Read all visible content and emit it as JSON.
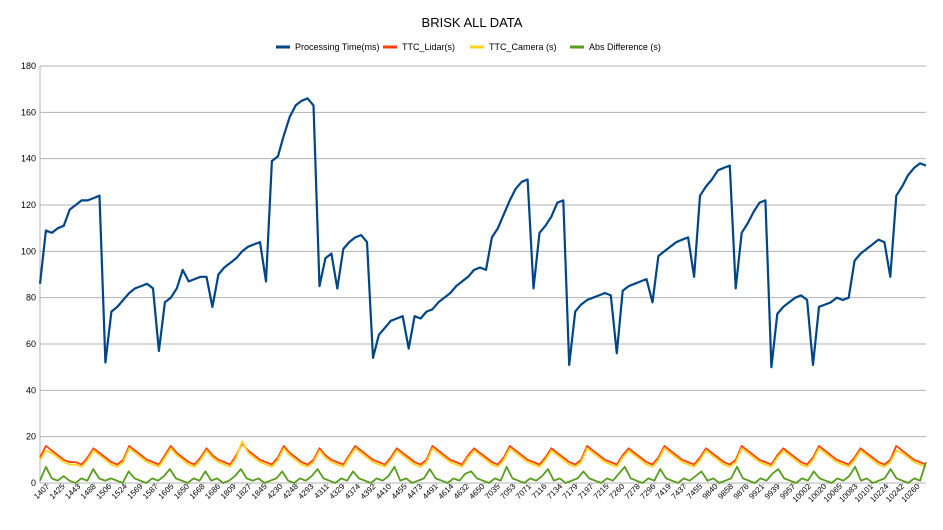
{
  "chart_data": {
    "type": "line",
    "title": "BRISK ALL DATA",
    "xlabel": "",
    "ylabel": "",
    "ylim": [
      0,
      180
    ],
    "y_ticks": [
      0,
      20,
      40,
      60,
      80,
      100,
      120,
      140,
      160,
      180
    ],
    "x_tick_labels": [
      "1407",
      "1425",
      "1443",
      "1488",
      "1506",
      "1524",
      "1569",
      "1587",
      "1605",
      "1650",
      "1668",
      "1686",
      "1809",
      "1827",
      "1845",
      "4230",
      "4248",
      "4293",
      "4311",
      "4329",
      "4374",
      "4392",
      "4410",
      "4455",
      "4473",
      "4491",
      "4614",
      "4632",
      "4650",
      "7035",
      "7053",
      "7071",
      "7116",
      "7134",
      "7179",
      "7197",
      "7215",
      "7260",
      "7278",
      "7296",
      "7419",
      "7437",
      "7455",
      "9840",
      "9858",
      "9876",
      "9921",
      "9939",
      "9957",
      "10002",
      "10020",
      "10065",
      "10083",
      "10101",
      "10224",
      "10242",
      "10260"
    ],
    "grid": true,
    "legend_position": "top",
    "series": [
      {
        "name": "Processing Time(ms)",
        "color": "#004586",
        "values": [
          86,
          109,
          108,
          110,
          111,
          118,
          120,
          122,
          122,
          123,
          124,
          52,
          74,
          76,
          79,
          82,
          84,
          85,
          86,
          84,
          57,
          78,
          80,
          84,
          92,
          87,
          88,
          89,
          89,
          76,
          90,
          93,
          95,
          97,
          100,
          102,
          103,
          104,
          87,
          139,
          141,
          150,
          158,
          163,
          165,
          166,
          163,
          85,
          97,
          99,
          84,
          101,
          104,
          106,
          107,
          104,
          54,
          64,
          67,
          70,
          71,
          72,
          58,
          72,
          71,
          74,
          75,
          78,
          80,
          82,
          85,
          87,
          89,
          92,
          93,
          92,
          106,
          110,
          116,
          122,
          127,
          130,
          131,
          84,
          108,
          111,
          115,
          121,
          122,
          51,
          74,
          77,
          79,
          80,
          81,
          82,
          81,
          56,
          83,
          85,
          86,
          87,
          88,
          78,
          98,
          100,
          102,
          104,
          105,
          106,
          89,
          124,
          128,
          131,
          135,
          136,
          137,
          84,
          108,
          112,
          117,
          121,
          122,
          50,
          73,
          76,
          78,
          80,
          81,
          79,
          51,
          76,
          77,
          78,
          80,
          79,
          80,
          96,
          99,
          101,
          103,
          105,
          104,
          89,
          124,
          128,
          133,
          136,
          138,
          137
        ]
      },
      {
        "name": "TTC_Lidar(s)",
        "color": "#ff420e",
        "values": [
          11,
          16,
          14,
          12,
          10,
          9,
          9,
          8,
          11,
          15,
          13,
          11,
          9,
          8,
          10,
          16,
          14,
          12,
          10,
          9,
          8,
          12,
          16,
          13,
          11,
          9,
          8,
          11,
          15,
          12,
          10,
          9,
          8,
          12,
          17,
          14,
          12,
          10,
          9,
          8,
          11,
          16,
          13,
          11,
          9,
          8,
          10,
          15,
          12,
          10,
          9,
          8,
          12,
          16,
          14,
          12,
          10,
          9,
          8,
          11,
          15,
          13,
          11,
          9,
          8,
          10,
          16,
          14,
          12,
          10,
          9,
          8,
          12,
          15,
          13,
          11,
          9,
          8,
          11,
          16,
          14,
          12,
          10,
          9,
          8,
          11,
          15,
          13,
          11,
          9,
          8,
          10,
          16,
          14,
          12,
          10,
          9,
          8,
          12,
          15,
          13,
          11,
          9,
          8,
          11,
          16,
          14,
          12,
          10,
          9,
          8,
          11,
          15,
          13,
          11,
          9,
          8,
          10,
          16,
          14,
          12,
          10,
          9,
          8,
          12,
          15,
          13,
          11,
          9,
          8,
          11,
          16,
          14,
          12,
          10,
          9,
          8,
          11,
          15,
          13,
          11,
          9,
          8,
          10,
          16,
          14,
          12,
          10,
          9,
          8
        ]
      },
      {
        "name": "TTC_Camera (s)",
        "color": "#ffd320",
        "values": [
          10,
          14,
          13,
          11,
          9,
          8,
          8,
          7,
          10,
          14,
          12,
          10,
          8,
          7,
          9,
          15,
          13,
          11,
          9,
          8,
          7,
          11,
          15,
          12,
          10,
          8,
          7,
          10,
          14,
          11,
          9,
          8,
          7,
          11,
          18,
          13,
          11,
          9,
          8,
          7,
          10,
          15,
          12,
          10,
          8,
          7,
          9,
          14,
          11,
          9,
          8,
          7,
          11,
          15,
          13,
          11,
          9,
          8,
          7,
          10,
          14,
          12,
          10,
          8,
          7,
          9,
          15,
          13,
          11,
          9,
          8,
          7,
          11,
          14,
          12,
          10,
          8,
          7,
          10,
          15,
          13,
          11,
          9,
          8,
          7,
          10,
          14,
          12,
          10,
          8,
          7,
          9,
          15,
          13,
          11,
          9,
          8,
          7,
          11,
          14,
          12,
          10,
          8,
          7,
          10,
          15,
          13,
          11,
          9,
          8,
          7,
          10,
          14,
          12,
          10,
          8,
          7,
          9,
          15,
          13,
          11,
          9,
          8,
          7,
          11,
          14,
          12,
          10,
          8,
          7,
          10,
          15,
          13,
          11,
          9,
          8,
          7,
          10,
          14,
          12,
          10,
          8,
          7,
          9,
          14,
          13,
          11,
          9,
          8,
          7
        ]
      },
      {
        "name": "Abs Difference (s)",
        "color": "#579d1c",
        "values": [
          1,
          7,
          2,
          1,
          3,
          1,
          0,
          2,
          1,
          6,
          2,
          1,
          2,
          1,
          0,
          5,
          2,
          1,
          0,
          2,
          1,
          3,
          6,
          2,
          1,
          0,
          2,
          1,
          5,
          1,
          2,
          0,
          1,
          3,
          6,
          2,
          1,
          2,
          0,
          1,
          2,
          5,
          1,
          0,
          2,
          1,
          3,
          6,
          2,
          1,
          0,
          2,
          1,
          5,
          2,
          1,
          0,
          2,
          1,
          3,
          7,
          1,
          2,
          0,
          1,
          2,
          6,
          2,
          1,
          0,
          2,
          1,
          4,
          5,
          2,
          1,
          0,
          2,
          1,
          7,
          2,
          1,
          0,
          2,
          1,
          3,
          6,
          1,
          2,
          0,
          1,
          2,
          5,
          2,
          1,
          0,
          2,
          1,
          4,
          7,
          2,
          1,
          0,
          2,
          1,
          6,
          2,
          1,
          0,
          2,
          1,
          3,
          5,
          1,
          2,
          0,
          1,
          2,
          7,
          2,
          1,
          0,
          2,
          1,
          4,
          6,
          2,
          1,
          0,
          2,
          1,
          5,
          2,
          1,
          0,
          2,
          1,
          3,
          7,
          1,
          2,
          0,
          1,
          2,
          6,
          2,
          1,
          0,
          2,
          1,
          9
        ]
      }
    ]
  }
}
